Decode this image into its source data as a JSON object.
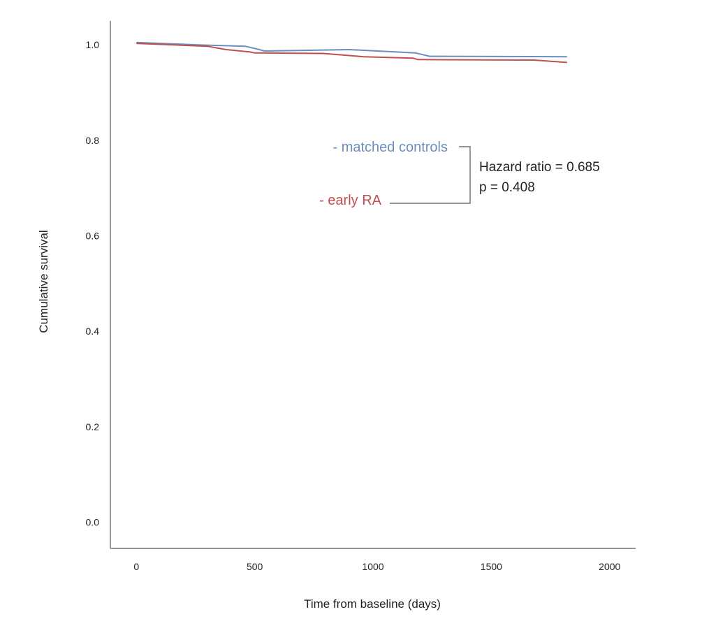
{
  "chart_data": {
    "type": "line",
    "xlabel": "Time from baseline (days)",
    "ylabel": "Cumulative survival",
    "xlim": [
      -110,
      2110
    ],
    "ylim": [
      -0.055,
      1.05
    ],
    "x_ticks": [
      0,
      500,
      1000,
      1500,
      2000
    ],
    "y_ticks": [
      0.0,
      0.2,
      0.4,
      0.6,
      0.8,
      1.0
    ],
    "x_tick_labels": [
      "0",
      "500",
      "1000",
      "1500",
      "2000"
    ],
    "y_tick_labels": [
      "0.0",
      "0.2",
      "0.4",
      "0.6",
      "0.8",
      "1.0"
    ],
    "grid": false,
    "legend_placement": "center",
    "series": [
      {
        "name": "- matched controls",
        "color": "#6c8ebf",
        "points": [
          [
            0,
            1.005
          ],
          [
            260,
            1.0
          ],
          [
            460,
            0.997
          ],
          [
            520,
            0.99
          ],
          [
            540,
            0.987
          ],
          [
            900,
            0.99
          ],
          [
            1180,
            0.983
          ],
          [
            1240,
            0.976
          ],
          [
            1820,
            0.975
          ]
        ]
      },
      {
        "name": "- early RA",
        "color": "#c0504d",
        "points": [
          [
            0,
            1.003
          ],
          [
            300,
            0.997
          ],
          [
            380,
            0.99
          ],
          [
            480,
            0.985
          ],
          [
            500,
            0.983
          ],
          [
            790,
            0.982
          ],
          [
            960,
            0.975
          ],
          [
            1170,
            0.972
          ],
          [
            1190,
            0.969
          ],
          [
            1680,
            0.968
          ],
          [
            1820,
            0.963
          ]
        ]
      }
    ],
    "annotations": [
      "Hazard ratio = 0.685",
      "p = 0.408"
    ]
  }
}
